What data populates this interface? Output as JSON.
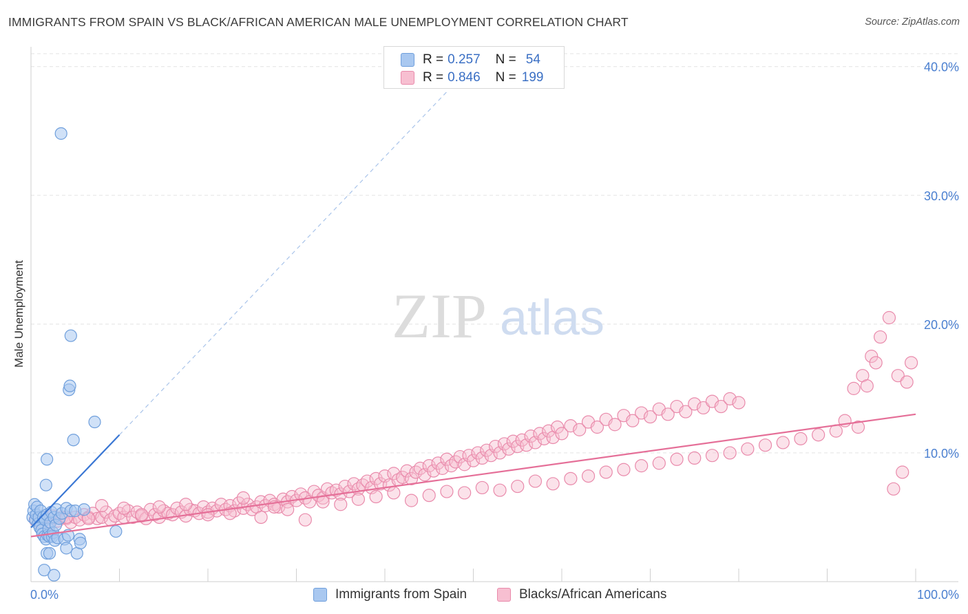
{
  "title": "IMMIGRANTS FROM SPAIN VS BLACK/AFRICAN AMERICAN MALE UNEMPLOYMENT CORRELATION CHART",
  "source": "Source: ZipAtlas.com",
  "watermark": {
    "zip": "ZIP",
    "atlas": "atlas"
  },
  "legend": {
    "rows": [
      {
        "r_label": "R =",
        "r_value": "0.257",
        "n_label": "N =",
        "n_value": "54",
        "color": "#a9c8f0",
        "stroke": "#6f9fdc"
      },
      {
        "r_label": "R =",
        "r_value": "0.846",
        "n_label": "N =",
        "n_value": "199",
        "color": "#f7bfd1",
        "stroke": "#e98aab"
      }
    ]
  },
  "bottom_legend": {
    "items": [
      {
        "label": "Immigrants from Spain",
        "color": "#a9c8f0",
        "stroke": "#6f9fdc"
      },
      {
        "label": "Blacks/African Americans",
        "color": "#f7bfd1",
        "stroke": "#e98aab"
      }
    ]
  },
  "chart_data": {
    "type": "scatter",
    "title": "IMMIGRANTS FROM SPAIN VS BLACK/AFRICAN AMERICAN MALE UNEMPLOYMENT CORRELATION CHART",
    "xlabel": "",
    "ylabel": "Male Unemployment",
    "xlim": [
      0,
      100
    ],
    "ylim": [
      0,
      41
    ],
    "x_tick_labels": [
      "0.0%",
      "100.0%"
    ],
    "y_ticks": [
      10,
      20,
      30,
      40
    ],
    "y_tick_labels": [
      "10.0%",
      "20.0%",
      "30.0%",
      "40.0%"
    ],
    "grid": true,
    "series": [
      {
        "name": "Immigrants from Spain",
        "color": "#a9c8f0",
        "stroke": "#6f9fdc",
        "trend": {
          "x0": 0,
          "y0": 4.2,
          "x1": 10,
          "y1": 11.4,
          "solid_end": 10,
          "dashed_end": 47,
          "line_color": "#3a77d4"
        },
        "points": [
          [
            0.2,
            5.0
          ],
          [
            0.3,
            5.5
          ],
          [
            0.4,
            6.0
          ],
          [
            0.5,
            4.8
          ],
          [
            0.6,
            5.2
          ],
          [
            0.7,
            5.8
          ],
          [
            0.8,
            4.5
          ],
          [
            0.9,
            5.0
          ],
          [
            1.0,
            4.2
          ],
          [
            1.1,
            5.5
          ],
          [
            1.2,
            4.0
          ],
          [
            1.3,
            3.7
          ],
          [
            1.4,
            5.0
          ],
          [
            1.5,
            3.5
          ],
          [
            1.6,
            4.8
          ],
          [
            1.7,
            3.3
          ],
          [
            1.8,
            5.2
          ],
          [
            1.9,
            3.6
          ],
          [
            2.0,
            4.1
          ],
          [
            2.1,
            3.5
          ],
          [
            2.2,
            4.6
          ],
          [
            2.3,
            5.4
          ],
          [
            2.4,
            3.5
          ],
          [
            2.5,
            3.8
          ],
          [
            2.6,
            5.0
          ],
          [
            2.7,
            3.2
          ],
          [
            2.8,
            4.4
          ],
          [
            2.9,
            5.6
          ],
          [
            3.0,
            3.4
          ],
          [
            3.2,
            4.9
          ],
          [
            3.5,
            5.3
          ],
          [
            3.8,
            3.3
          ],
          [
            4.0,
            5.7
          ],
          [
            4.2,
            3.6
          ],
          [
            4.5,
            5.5
          ],
          [
            5.0,
            5.5
          ],
          [
            5.5,
            3.3
          ],
          [
            6.0,
            5.6
          ],
          [
            3.4,
            34.8
          ],
          [
            4.5,
            19.1
          ],
          [
            4.3,
            14.9
          ],
          [
            4.4,
            15.2
          ],
          [
            4.8,
            11.0
          ],
          [
            7.2,
            12.4
          ],
          [
            1.8,
            9.5
          ],
          [
            1.7,
            7.5
          ],
          [
            1.5,
            0.9
          ],
          [
            2.6,
            0.5
          ],
          [
            1.8,
            2.2
          ],
          [
            2.1,
            2.2
          ],
          [
            4.0,
            2.6
          ],
          [
            5.2,
            2.2
          ],
          [
            5.6,
            3.0
          ],
          [
            9.6,
            3.9
          ]
        ]
      },
      {
        "name": "Blacks/African Americans",
        "color": "#f7bfd1",
        "stroke": "#e98aab",
        "trend": {
          "x0": 0,
          "y0": 3.5,
          "x1": 100,
          "y1": 13.0,
          "line_color": "#e56f98"
        },
        "points": [
          [
            0.5,
            4.8
          ],
          [
            1.0,
            4.6
          ],
          [
            1.5,
            5.0
          ],
          [
            2.0,
            4.4
          ],
          [
            2.5,
            5.1
          ],
          [
            3.0,
            4.7
          ],
          [
            3.5,
            5.0
          ],
          [
            4.0,
            4.9
          ],
          [
            4.5,
            4.6
          ],
          [
            5.0,
            5.0
          ],
          [
            5.5,
            4.8
          ],
          [
            6.0,
            5.2
          ],
          [
            6.5,
            5.0
          ],
          [
            7.0,
            5.3
          ],
          [
            7.5,
            4.9
          ],
          [
            8.0,
            5.0
          ],
          [
            8.5,
            5.4
          ],
          [
            9.0,
            4.8
          ],
          [
            9.5,
            5.1
          ],
          [
            10.0,
            5.3
          ],
          [
            10.5,
            5.0
          ],
          [
            11.0,
            5.5
          ],
          [
            11.5,
            5.0
          ],
          [
            12.0,
            5.4
          ],
          [
            12.5,
            5.1
          ],
          [
            13.0,
            4.9
          ],
          [
            13.5,
            5.6
          ],
          [
            14.0,
            5.2
          ],
          [
            14.5,
            5.0
          ],
          [
            15.0,
            5.5
          ],
          [
            15.5,
            5.3
          ],
          [
            16.0,
            5.2
          ],
          [
            16.5,
            5.7
          ],
          [
            17.0,
            5.4
          ],
          [
            17.5,
            5.1
          ],
          [
            18.0,
            5.6
          ],
          [
            18.5,
            5.5
          ],
          [
            19.0,
            5.3
          ],
          [
            19.5,
            5.8
          ],
          [
            20.0,
            5.4
          ],
          [
            20.5,
            5.7
          ],
          [
            21.0,
            5.5
          ],
          [
            21.5,
            6.0
          ],
          [
            22.0,
            5.6
          ],
          [
            22.5,
            5.9
          ],
          [
            23.0,
            5.5
          ],
          [
            23.5,
            6.1
          ],
          [
            24.0,
            5.7
          ],
          [
            24.5,
            6.0
          ],
          [
            25.0,
            5.6
          ],
          [
            25.5,
            5.8
          ],
          [
            26.0,
            6.2
          ],
          [
            26.5,
            5.9
          ],
          [
            27.0,
            6.3
          ],
          [
            27.5,
            6.0
          ],
          [
            28.0,
            5.8
          ],
          [
            28.5,
            6.4
          ],
          [
            29.0,
            6.2
          ],
          [
            29.5,
            6.6
          ],
          [
            30.0,
            6.3
          ],
          [
            30.5,
            6.8
          ],
          [
            31.0,
            6.5
          ],
          [
            31.5,
            6.2
          ],
          [
            32.0,
            7.0
          ],
          [
            32.5,
            6.7
          ],
          [
            33.0,
            6.5
          ],
          [
            33.5,
            7.2
          ],
          [
            34.0,
            6.9
          ],
          [
            34.5,
            7.1
          ],
          [
            35.0,
            6.8
          ],
          [
            35.5,
            7.4
          ],
          [
            36.0,
            7.0
          ],
          [
            36.5,
            7.6
          ],
          [
            37.0,
            7.2
          ],
          [
            37.5,
            7.5
          ],
          [
            38.0,
            7.8
          ],
          [
            38.5,
            7.3
          ],
          [
            39.0,
            8.0
          ],
          [
            39.5,
            7.6
          ],
          [
            40.0,
            8.2
          ],
          [
            40.5,
            7.5
          ],
          [
            41.0,
            8.4
          ],
          [
            41.5,
            7.9
          ],
          [
            42.0,
            8.1
          ],
          [
            42.5,
            8.6
          ],
          [
            43.0,
            8.0
          ],
          [
            43.5,
            8.5
          ],
          [
            44.0,
            8.8
          ],
          [
            44.5,
            8.3
          ],
          [
            45.0,
            9.0
          ],
          [
            45.5,
            8.6
          ],
          [
            46.0,
            9.2
          ],
          [
            46.5,
            8.8
          ],
          [
            47.0,
            9.5
          ],
          [
            47.5,
            9.0
          ],
          [
            48.0,
            9.3
          ],
          [
            48.5,
            9.7
          ],
          [
            49.0,
            9.1
          ],
          [
            49.5,
            9.8
          ],
          [
            50.0,
            9.4
          ],
          [
            50.5,
            10.0
          ],
          [
            51.0,
            9.6
          ],
          [
            51.5,
            10.2
          ],
          [
            52.0,
            9.8
          ],
          [
            52.5,
            10.5
          ],
          [
            53.0,
            10.0
          ],
          [
            53.5,
            10.7
          ],
          [
            54.0,
            10.3
          ],
          [
            54.5,
            10.9
          ],
          [
            55.0,
            10.5
          ],
          [
            55.5,
            11.0
          ],
          [
            56.0,
            10.6
          ],
          [
            56.5,
            11.3
          ],
          [
            57.0,
            10.8
          ],
          [
            57.5,
            11.5
          ],
          [
            58.0,
            11.1
          ],
          [
            58.5,
            11.7
          ],
          [
            59.0,
            11.2
          ],
          [
            59.5,
            12.0
          ],
          [
            60.0,
            11.5
          ],
          [
            61.0,
            12.1
          ],
          [
            62.0,
            11.8
          ],
          [
            63.0,
            12.4
          ],
          [
            64.0,
            12.0
          ],
          [
            65.0,
            12.6
          ],
          [
            66.0,
            12.2
          ],
          [
            67.0,
            12.9
          ],
          [
            68.0,
            12.5
          ],
          [
            69.0,
            13.1
          ],
          [
            70.0,
            12.8
          ],
          [
            71.0,
            13.4
          ],
          [
            72.0,
            13.0
          ],
          [
            73.0,
            13.6
          ],
          [
            74.0,
            13.2
          ],
          [
            75.0,
            13.8
          ],
          [
            76.0,
            13.5
          ],
          [
            77.0,
            14.0
          ],
          [
            78.0,
            13.6
          ],
          [
            79.0,
            14.2
          ],
          [
            80.0,
            13.9
          ],
          [
            2.0,
            4.4
          ],
          [
            4.0,
            5.0
          ],
          [
            6.5,
            4.9
          ],
          [
            8.0,
            5.9
          ],
          [
            10.5,
            5.7
          ],
          [
            12.5,
            5.2
          ],
          [
            14.5,
            5.8
          ],
          [
            17.5,
            6.0
          ],
          [
            20.0,
            5.2
          ],
          [
            22.5,
            5.3
          ],
          [
            24.0,
            6.5
          ],
          [
            26.0,
            5.0
          ],
          [
            27.5,
            5.8
          ],
          [
            29.0,
            5.6
          ],
          [
            31.0,
            4.8
          ],
          [
            33.0,
            6.2
          ],
          [
            35.0,
            6.0
          ],
          [
            37.0,
            6.4
          ],
          [
            39.0,
            6.6
          ],
          [
            41.0,
            6.9
          ],
          [
            43.0,
            6.3
          ],
          [
            45.0,
            6.7
          ],
          [
            47.0,
            7.0
          ],
          [
            49.0,
            6.9
          ],
          [
            51.0,
            7.3
          ],
          [
            53.0,
            7.1
          ],
          [
            55.0,
            7.4
          ],
          [
            57.0,
            7.8
          ],
          [
            59.0,
            7.6
          ],
          [
            61.0,
            8.0
          ],
          [
            63.0,
            8.2
          ],
          [
            65.0,
            8.5
          ],
          [
            67.0,
            8.7
          ],
          [
            69.0,
            9.0
          ],
          [
            71.0,
            9.2
          ],
          [
            73.0,
            9.5
          ],
          [
            75.0,
            9.6
          ],
          [
            77.0,
            9.8
          ],
          [
            79.0,
            10.0
          ],
          [
            81.0,
            10.3
          ],
          [
            83.0,
            10.6
          ],
          [
            85.0,
            10.8
          ],
          [
            87.0,
            11.1
          ],
          [
            89.0,
            11.4
          ],
          [
            91.0,
            11.7
          ],
          [
            92.0,
            12.5
          ],
          [
            93.0,
            15.0
          ],
          [
            94.0,
            16.0
          ],
          [
            95.0,
            17.5
          ],
          [
            96.0,
            19.0
          ],
          [
            97.0,
            20.5
          ],
          [
            98.0,
            16.0
          ],
          [
            99.0,
            15.5
          ],
          [
            97.5,
            7.2
          ],
          [
            98.5,
            8.5
          ],
          [
            93.5,
            12.0
          ],
          [
            94.5,
            15.2
          ],
          [
            95.5,
            17.0
          ],
          [
            99.5,
            17.0
          ]
        ]
      }
    ]
  }
}
